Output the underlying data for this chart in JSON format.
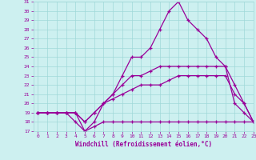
{
  "x": [
    0,
    1,
    2,
    3,
    4,
    5,
    6,
    7,
    8,
    9,
    10,
    11,
    12,
    13,
    14,
    15,
    16,
    17,
    18,
    19,
    20,
    21,
    22,
    23
  ],
  "line1": [
    19,
    19,
    19,
    19,
    18,
    17,
    17.5,
    18,
    18,
    18,
    18,
    18,
    18,
    18,
    18,
    18,
    18,
    18,
    18,
    18,
    18,
    18,
    18,
    18
  ],
  "line2": [
    19,
    19,
    19,
    19,
    19,
    17,
    18,
    20,
    21,
    23,
    25,
    25,
    26,
    28,
    30,
    31,
    29,
    28,
    27,
    25,
    24,
    20,
    19,
    18
  ],
  "line3": [
    19,
    19,
    19,
    19,
    19,
    18,
    19,
    20,
    21,
    22,
    23,
    23,
    23.5,
    24,
    24,
    24,
    24,
    24,
    24,
    24,
    24,
    22,
    20,
    18
  ],
  "line4": [
    19,
    19,
    19,
    19,
    19,
    18,
    19,
    20,
    20.5,
    21,
    21.5,
    22,
    22,
    22,
    22.5,
    23,
    23,
    23,
    23,
    23,
    23,
    21,
    20,
    18
  ],
  "color": "#990099",
  "bg_color": "#cdf0f0",
  "grid_color": "#a0d8d8",
  "xlabel": "Windchill (Refroidissement éolien,°C)",
  "ylim": [
    17,
    31
  ],
  "xlim": [
    -0.5,
    23
  ],
  "yticks": [
    17,
    18,
    19,
    20,
    21,
    22,
    23,
    24,
    25,
    26,
    27,
    28,
    29,
    30,
    31
  ],
  "xticks": [
    0,
    1,
    2,
    3,
    4,
    5,
    6,
    7,
    8,
    9,
    10,
    11,
    12,
    13,
    14,
    15,
    16,
    17,
    18,
    19,
    20,
    21,
    22,
    23
  ]
}
